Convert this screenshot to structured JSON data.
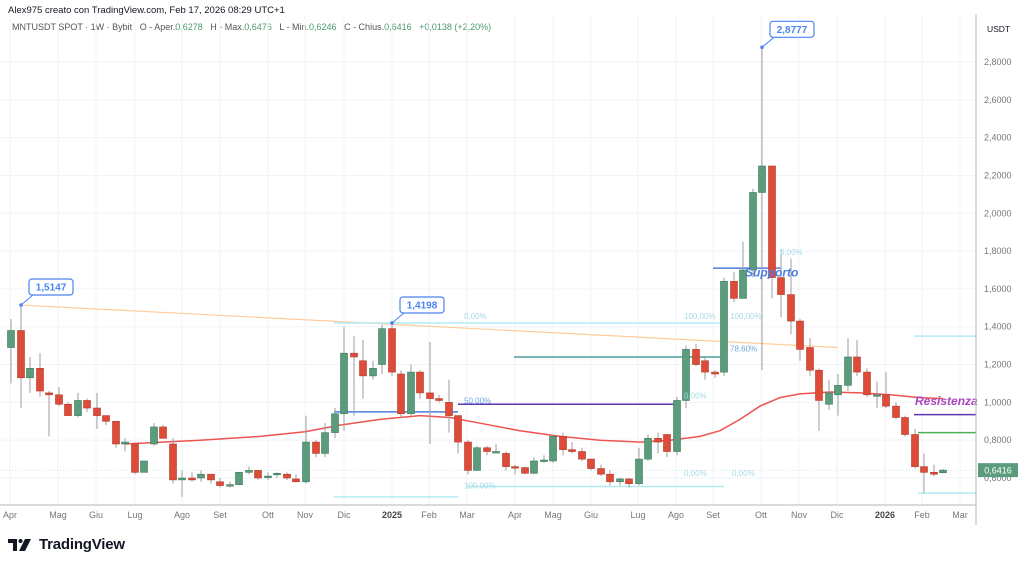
{
  "header": {
    "attribution": "Alex975 creato con TradingView.com, Feb 17, 2026 08:29 UTC+1"
  },
  "legend": {
    "symbol": "MNTUSDT SPOT · 1W · Bybit",
    "open_label": "O - Aper.",
    "open_value": "0,6278",
    "high_label": "H - Max.",
    "high_value": "0,6476",
    "low_label": "L - Min.",
    "low_value": "0,6246",
    "close_label": "C - Chius.",
    "close_value": "0,6416",
    "change": "+0,0138 (+2,20%)"
  },
  "price_axis": {
    "currency": "USDT",
    "current_price_label": "0,6416",
    "current_price_color": "#5b9c7c"
  },
  "footer": {
    "brand": "TradingView"
  },
  "colors": {
    "up": "#5b9c7c",
    "down": "#dd4b39",
    "ma": "#ef5350",
    "trendline": "#ffcc99",
    "fib_light": "#b2ebf2",
    "support_blue": "#4c7ddf",
    "purple_line": "#5e35b1",
    "green_line": "#4caf50",
    "resist_text": "#ab47bc",
    "callout": "#4c84f0"
  },
  "chart_data": {
    "type": "candlestick",
    "title": "MNTUSDT SPOT · 1W · Bybit",
    "xlabel": "",
    "ylabel": "USDT",
    "ylim": [
      0.5,
      2.95
    ],
    "y_ticks": [
      "2,8000",
      "2,6000",
      "2,4000",
      "2,2000",
      "2,0000",
      "1,8000",
      "1,6000",
      "1,4000",
      "1,2000",
      "1,0000",
      "0,8000",
      "0,6000"
    ],
    "y_tick_values": [
      2.8,
      2.6,
      2.4,
      2.2,
      2.0,
      1.8,
      1.6,
      1.4,
      1.2,
      1.0,
      0.8,
      0.6
    ],
    "x_ticks": [
      {
        "label": "Apr",
        "x": 10,
        "bold": false
      },
      {
        "label": "Mag",
        "x": 58,
        "bold": false
      },
      {
        "label": "Giu",
        "x": 96,
        "bold": false
      },
      {
        "label": "Lug",
        "x": 135,
        "bold": false
      },
      {
        "label": "Ago",
        "x": 182,
        "bold": false
      },
      {
        "label": "Set",
        "x": 220,
        "bold": false
      },
      {
        "label": "Ott",
        "x": 268,
        "bold": false
      },
      {
        "label": "Nov",
        "x": 305,
        "bold": false
      },
      {
        "label": "Dic",
        "x": 344,
        "bold": false
      },
      {
        "label": "2025",
        "x": 392,
        "bold": true
      },
      {
        "label": "Feb",
        "x": 429,
        "bold": false
      },
      {
        "label": "Mar",
        "x": 467,
        "bold": false
      },
      {
        "label": "Apr",
        "x": 515,
        "bold": false
      },
      {
        "label": "Mag",
        "x": 553,
        "bold": false
      },
      {
        "label": "Giu",
        "x": 591,
        "bold": false
      },
      {
        "label": "Lug",
        "x": 638,
        "bold": false
      },
      {
        "label": "Ago",
        "x": 676,
        "bold": false
      },
      {
        "label": "Set",
        "x": 713,
        "bold": false
      },
      {
        "label": "Ott",
        "x": 761,
        "bold": false
      },
      {
        "label": "Nov",
        "x": 799,
        "bold": false
      },
      {
        "label": "Dic",
        "x": 837,
        "bold": false
      },
      {
        "label": "2026",
        "x": 885,
        "bold": true
      },
      {
        "label": "Feb",
        "x": 922,
        "bold": false
      },
      {
        "label": "Mar",
        "x": 960,
        "bold": false
      }
    ],
    "candles": [
      {
        "x": 11,
        "o": 1.29,
        "h": 1.44,
        "l": 1.1,
        "c": 1.38
      },
      {
        "x": 21,
        "o": 1.38,
        "h": 1.515,
        "l": 0.97,
        "c": 1.13
      },
      {
        "x": 30,
        "o": 1.13,
        "h": 1.24,
        "l": 1.05,
        "c": 1.18
      },
      {
        "x": 40,
        "o": 1.18,
        "h": 1.26,
        "l": 1.03,
        "c": 1.06
      },
      {
        "x": 49,
        "o": 1.05,
        "h": 1.06,
        "l": 0.82,
        "c": 1.04
      },
      {
        "x": 59,
        "o": 1.04,
        "h": 1.08,
        "l": 0.98,
        "c": 0.99
      },
      {
        "x": 68,
        "o": 0.99,
        "h": 1.0,
        "l": 0.93,
        "c": 0.93
      },
      {
        "x": 78,
        "o": 0.93,
        "h": 1.05,
        "l": 0.92,
        "c": 1.01
      },
      {
        "x": 87,
        "o": 1.01,
        "h": 1.02,
        "l": 0.95,
        "c": 0.97
      },
      {
        "x": 97,
        "o": 0.97,
        "h": 1.05,
        "l": 0.86,
        "c": 0.93
      },
      {
        "x": 106,
        "o": 0.93,
        "h": 0.93,
        "l": 0.88,
        "c": 0.9
      },
      {
        "x": 116,
        "o": 0.9,
        "h": 0.9,
        "l": 0.76,
        "c": 0.78
      },
      {
        "x": 125,
        "o": 0.78,
        "h": 0.81,
        "l": 0.74,
        "c": 0.79
      },
      {
        "x": 135,
        "o": 0.78,
        "h": 0.79,
        "l": 0.62,
        "c": 0.63
      },
      {
        "x": 144,
        "o": 0.63,
        "h": 0.69,
        "l": 0.63,
        "c": 0.69
      },
      {
        "x": 154,
        "o": 0.78,
        "h": 0.89,
        "l": 0.77,
        "c": 0.87
      },
      {
        "x": 163,
        "o": 0.87,
        "h": 0.88,
        "l": 0.81,
        "c": 0.81
      },
      {
        "x": 173,
        "o": 0.78,
        "h": 0.81,
        "l": 0.57,
        "c": 0.59
      },
      {
        "x": 182,
        "o": 0.59,
        "h": 0.64,
        "l": 0.5,
        "c": 0.6
      },
      {
        "x": 192,
        "o": 0.6,
        "h": 0.63,
        "l": 0.58,
        "c": 0.59
      },
      {
        "x": 201,
        "o": 0.6,
        "h": 0.64,
        "l": 0.58,
        "c": 0.62
      },
      {
        "x": 211,
        "o": 0.62,
        "h": 0.62,
        "l": 0.57,
        "c": 0.59
      },
      {
        "x": 220,
        "o": 0.58,
        "h": 0.6,
        "l": 0.55,
        "c": 0.56
      },
      {
        "x": 230,
        "o": 0.56,
        "h": 0.58,
        "l": 0.55,
        "c": 0.565
      },
      {
        "x": 239,
        "o": 0.565,
        "h": 0.63,
        "l": 0.56,
        "c": 0.63
      },
      {
        "x": 249,
        "o": 0.63,
        "h": 0.66,
        "l": 0.62,
        "c": 0.64
      },
      {
        "x": 258,
        "o": 0.64,
        "h": 0.64,
        "l": 0.59,
        "c": 0.6
      },
      {
        "x": 268,
        "o": 0.61,
        "h": 0.63,
        "l": 0.59,
        "c": 0.61
      },
      {
        "x": 277,
        "o": 0.62,
        "h": 0.63,
        "l": 0.6,
        "c": 0.625
      },
      {
        "x": 287,
        "o": 0.62,
        "h": 0.63,
        "l": 0.59,
        "c": 0.6
      },
      {
        "x": 296,
        "o": 0.595,
        "h": 0.62,
        "l": 0.58,
        "c": 0.58
      },
      {
        "x": 306,
        "o": 0.58,
        "h": 0.93,
        "l": 0.57,
        "c": 0.79
      },
      {
        "x": 316,
        "o": 0.79,
        "h": 0.8,
        "l": 0.71,
        "c": 0.73
      },
      {
        "x": 325,
        "o": 0.73,
        "h": 0.89,
        "l": 0.71,
        "c": 0.84
      },
      {
        "x": 335,
        "o": 0.84,
        "h": 0.97,
        "l": 0.81,
        "c": 0.94
      },
      {
        "x": 344,
        "o": 0.94,
        "h": 1.4,
        "l": 0.85,
        "c": 1.26
      },
      {
        "x": 354,
        "o": 1.26,
        "h": 1.35,
        "l": 0.93,
        "c": 1.24
      },
      {
        "x": 363,
        "o": 1.22,
        "h": 1.33,
        "l": 1.02,
        "c": 1.14
      },
      {
        "x": 373,
        "o": 1.14,
        "h": 1.22,
        "l": 1.12,
        "c": 1.18
      },
      {
        "x": 382,
        "o": 1.2,
        "h": 1.41,
        "l": 1.15,
        "c": 1.39
      },
      {
        "x": 392,
        "o": 1.39,
        "h": 1.42,
        "l": 1.14,
        "c": 1.16
      },
      {
        "x": 401,
        "o": 1.15,
        "h": 1.17,
        "l": 0.92,
        "c": 0.94
      },
      {
        "x": 411,
        "o": 0.94,
        "h": 1.2,
        "l": 0.93,
        "c": 1.16
      },
      {
        "x": 420,
        "o": 1.16,
        "h": 1.17,
        "l": 1.02,
        "c": 1.05
      },
      {
        "x": 430,
        "o": 1.05,
        "h": 1.32,
        "l": 0.78,
        "c": 1.02
      },
      {
        "x": 439,
        "o": 1.02,
        "h": 1.04,
        "l": 1.0,
        "c": 1.01
      },
      {
        "x": 449,
        "o": 1.0,
        "h": 1.12,
        "l": 0.84,
        "c": 0.93
      },
      {
        "x": 458,
        "o": 0.93,
        "h": 0.93,
        "l": 0.73,
        "c": 0.79
      },
      {
        "x": 468,
        "o": 0.79,
        "h": 0.8,
        "l": 0.62,
        "c": 0.64
      },
      {
        "x": 477,
        "o": 0.64,
        "h": 0.77,
        "l": 0.64,
        "c": 0.76
      },
      {
        "x": 487,
        "o": 0.76,
        "h": 0.77,
        "l": 0.72,
        "c": 0.74
      },
      {
        "x": 496,
        "o": 0.74,
        "h": 0.78,
        "l": 0.73,
        "c": 0.74
      },
      {
        "x": 506,
        "o": 0.73,
        "h": 0.74,
        "l": 0.64,
        "c": 0.66
      },
      {
        "x": 515,
        "o": 0.66,
        "h": 0.67,
        "l": 0.62,
        "c": 0.655
      },
      {
        "x": 525,
        "o": 0.655,
        "h": 0.66,
        "l": 0.62,
        "c": 0.625
      },
      {
        "x": 534,
        "o": 0.625,
        "h": 0.71,
        "l": 0.62,
        "c": 0.69
      },
      {
        "x": 544,
        "o": 0.69,
        "h": 0.72,
        "l": 0.68,
        "c": 0.695
      },
      {
        "x": 553,
        "o": 0.69,
        "h": 0.83,
        "l": 0.68,
        "c": 0.82
      },
      {
        "x": 563,
        "o": 0.82,
        "h": 0.84,
        "l": 0.72,
        "c": 0.75
      },
      {
        "x": 572,
        "o": 0.75,
        "h": 0.79,
        "l": 0.73,
        "c": 0.74
      },
      {
        "x": 582,
        "o": 0.74,
        "h": 0.76,
        "l": 0.69,
        "c": 0.7
      },
      {
        "x": 591,
        "o": 0.7,
        "h": 0.7,
        "l": 0.64,
        "c": 0.65
      },
      {
        "x": 601,
        "o": 0.65,
        "h": 0.67,
        "l": 0.61,
        "c": 0.62
      },
      {
        "x": 610,
        "o": 0.62,
        "h": 0.64,
        "l": 0.56,
        "c": 0.58
      },
      {
        "x": 620,
        "o": 0.58,
        "h": 0.6,
        "l": 0.56,
        "c": 0.595
      },
      {
        "x": 629,
        "o": 0.595,
        "h": 0.6,
        "l": 0.55,
        "c": 0.57
      },
      {
        "x": 639,
        "o": 0.57,
        "h": 0.76,
        "l": 0.56,
        "c": 0.7
      },
      {
        "x": 648,
        "o": 0.7,
        "h": 0.83,
        "l": 0.69,
        "c": 0.81
      },
      {
        "x": 658,
        "o": 0.81,
        "h": 0.84,
        "l": 0.73,
        "c": 0.79
      },
      {
        "x": 667,
        "o": 0.83,
        "h": 0.83,
        "l": 0.71,
        "c": 0.74
      },
      {
        "x": 677,
        "o": 0.74,
        "h": 1.03,
        "l": 0.72,
        "c": 1.01
      },
      {
        "x": 686,
        "o": 1.01,
        "h": 1.3,
        "l": 0.97,
        "c": 1.28
      },
      {
        "x": 696,
        "o": 1.28,
        "h": 1.31,
        "l": 1.19,
        "c": 1.2
      },
      {
        "x": 705,
        "o": 1.22,
        "h": 1.24,
        "l": 1.12,
        "c": 1.16
      },
      {
        "x": 715,
        "o": 1.16,
        "h": 1.17,
        "l": 1.13,
        "c": 1.15
      },
      {
        "x": 724,
        "o": 1.16,
        "h": 1.66,
        "l": 1.14,
        "c": 1.64
      },
      {
        "x": 734,
        "o": 1.64,
        "h": 1.69,
        "l": 1.53,
        "c": 1.55
      },
      {
        "x": 743,
        "o": 1.55,
        "h": 1.85,
        "l": 1.56,
        "c": 1.7
      },
      {
        "x": 753,
        "o": 1.7,
        "h": 2.13,
        "l": 1.66,
        "c": 2.11
      },
      {
        "x": 762,
        "o": 2.11,
        "h": 2.8777,
        "l": 1.17,
        "c": 2.25
      },
      {
        "x": 772,
        "o": 2.25,
        "h": 2.25,
        "l": 1.55,
        "c": 1.66
      },
      {
        "x": 781,
        "o": 1.66,
        "h": 1.81,
        "l": 1.45,
        "c": 1.57
      },
      {
        "x": 791,
        "o": 1.57,
        "h": 1.76,
        "l": 1.36,
        "c": 1.43
      },
      {
        "x": 800,
        "o": 1.43,
        "h": 1.44,
        "l": 1.22,
        "c": 1.28
      },
      {
        "x": 810,
        "o": 1.29,
        "h": 1.34,
        "l": 1.14,
        "c": 1.17
      },
      {
        "x": 819,
        "o": 1.17,
        "h": 1.18,
        "l": 0.85,
        "c": 1.01
      },
      {
        "x": 829,
        "o": 0.99,
        "h": 1.12,
        "l": 0.96,
        "c": 1.05
      },
      {
        "x": 838,
        "o": 1.04,
        "h": 1.15,
        "l": 0.93,
        "c": 1.09
      },
      {
        "x": 848,
        "o": 1.09,
        "h": 1.34,
        "l": 1.06,
        "c": 1.24
      },
      {
        "x": 857,
        "o": 1.24,
        "h": 1.33,
        "l": 1.14,
        "c": 1.16
      },
      {
        "x": 867,
        "o": 1.16,
        "h": 1.18,
        "l": 1.03,
        "c": 1.04
      },
      {
        "x": 877,
        "o": 1.04,
        "h": 1.11,
        "l": 0.97,
        "c": 1.04
      },
      {
        "x": 886,
        "o": 1.04,
        "h": 1.16,
        "l": 0.97,
        "c": 0.98
      },
      {
        "x": 896,
        "o": 0.98,
        "h": 1.0,
        "l": 0.91,
        "c": 0.92
      },
      {
        "x": 905,
        "o": 0.92,
        "h": 0.93,
        "l": 0.82,
        "c": 0.83
      },
      {
        "x": 915,
        "o": 0.83,
        "h": 0.86,
        "l": 0.65,
        "c": 0.66
      },
      {
        "x": 924,
        "o": 0.66,
        "h": 0.73,
        "l": 0.52,
        "c": 0.63
      },
      {
        "x": 934,
        "o": 0.63,
        "h": 0.67,
        "l": 0.61,
        "c": 0.62
      },
      {
        "x": 943,
        "o": 0.6278,
        "h": 0.6476,
        "l": 0.6246,
        "c": 0.6416
      }
    ],
    "moving_average": {
      "name": "MA (red)",
      "points": [
        [
          125,
          0.78
        ],
        [
          200,
          0.8
        ],
        [
          260,
          0.82
        ],
        [
          305,
          0.845
        ],
        [
          340,
          0.88
        ],
        [
          380,
          0.91
        ],
        [
          420,
          0.93
        ],
        [
          450,
          0.92
        ],
        [
          480,
          0.89
        ],
        [
          520,
          0.85
        ],
        [
          560,
          0.82
        ],
        [
          600,
          0.8
        ],
        [
          640,
          0.79
        ],
        [
          670,
          0.8
        ],
        [
          700,
          0.82
        ],
        [
          720,
          0.85
        ],
        [
          740,
          0.91
        ],
        [
          760,
          0.98
        ],
        [
          780,
          1.025
        ],
        [
          800,
          1.045
        ],
        [
          830,
          1.055
        ],
        [
          860,
          1.05
        ],
        [
          890,
          1.04
        ],
        [
          920,
          1.025
        ],
        [
          943,
          1.02
        ]
      ]
    },
    "annotations": [
      {
        "type": "callout",
        "text": "1,5147",
        "x": 21,
        "price": 1.5147
      },
      {
        "type": "callout",
        "text": "1,4198",
        "x": 392,
        "price": 1.4198
      },
      {
        "type": "callout",
        "text": "2,8777",
        "x": 762,
        "price": 2.8777
      },
      {
        "type": "text",
        "text": "Supporto",
        "x": 745,
        "price": 1.665,
        "color": "#4c7ddf"
      },
      {
        "type": "text",
        "text": "Resistenza",
        "x": 915,
        "price": 0.985,
        "color": "#ab47bc"
      },
      {
        "type": "fib_label",
        "text": "0,00%",
        "x": 464,
        "price": 1.44
      },
      {
        "type": "fib_label",
        "text": "50,00%",
        "x": 464,
        "price": 0.995
      },
      {
        "type": "fib_label",
        "text": "100,00%",
        "x": 464,
        "price": 0.545
      },
      {
        "type": "fib_label",
        "text": "100,00%",
        "x": 684,
        "price": 1.44
      },
      {
        "type": "fib_label",
        "text": "100,00%",
        "x": 730,
        "price": 1.44
      },
      {
        "type": "fib_label",
        "text": "78,60%",
        "x": 730,
        "price": 1.27
      },
      {
        "type": "fib_label",
        "text": "0,00%",
        "x": 684,
        "price": 1.02
      },
      {
        "type": "fib_label",
        "text": "0,00%",
        "x": 780,
        "price": 1.78
      },
      {
        "type": "fib_label",
        "text": "0,00%",
        "x": 684,
        "price": 0.61
      },
      {
        "type": "fib_label",
        "text": "0,00%",
        "x": 732,
        "price": 0.61
      }
    ],
    "lines": [
      {
        "name": "trendline",
        "x1": 21,
        "p1": 1.5147,
        "x2": 838,
        "p2": 1.29,
        "color": "#ffcc99"
      },
      {
        "name": "fib-top-1",
        "x1": 334,
        "p1": 1.4198,
        "x2": 458,
        "p2": 1.4198,
        "color": "#b2ebf2"
      },
      {
        "name": "fib-mid-1",
        "x1": 334,
        "p1": 0.95,
        "x2": 458,
        "p2": 0.95,
        "color": "#4c7ddf"
      },
      {
        "name": "fib-bottom-1",
        "x1": 334,
        "p1": 0.5,
        "x2": 458,
        "p2": 0.5,
        "color": "#b2ebf2"
      },
      {
        "name": "fib-top-2",
        "x1": 458,
        "p1": 1.4198,
        "x2": 724,
        "p2": 1.4198,
        "color": "#b2ebf2"
      },
      {
        "name": "fib-786",
        "x1": 514,
        "p1": 1.24,
        "x2": 724,
        "p2": 1.24,
        "color": "#4c9e9e"
      },
      {
        "name": "fib-50-purple",
        "x1": 458,
        "p1": 0.99,
        "x2": 677,
        "p2": 0.99,
        "color": "#5e35b1"
      },
      {
        "name": "fib-bottom-2",
        "x1": 466,
        "p1": 0.555,
        "x2": 724,
        "p2": 0.555,
        "color": "#b2ebf2"
      },
      {
        "name": "supporto-line",
        "x1": 713,
        "p1": 1.71,
        "x2": 781,
        "p2": 1.71,
        "color": "#4c7ddf"
      },
      {
        "name": "top-right-cyan",
        "x1": 914,
        "p1": 1.35,
        "x2": 976,
        "p2": 1.35,
        "color": "#b2ebf2"
      },
      {
        "name": "resistenza-line",
        "x1": 914,
        "p1": 0.935,
        "x2": 976,
        "p2": 0.935,
        "color": "#5e35b1"
      },
      {
        "name": "green-line",
        "x1": 918,
        "p1": 0.84,
        "x2": 976,
        "p2": 0.84,
        "color": "#4caf50"
      },
      {
        "name": "bottom-right-cyan",
        "x1": 918,
        "p1": 0.52,
        "x2": 976,
        "p2": 0.52,
        "color": "#b2ebf2"
      }
    ]
  }
}
